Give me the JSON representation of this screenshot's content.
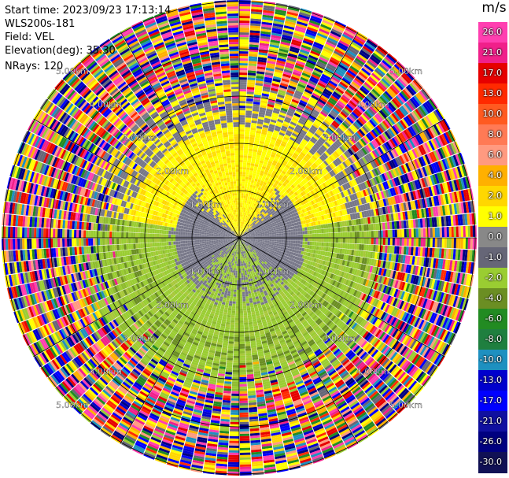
{
  "info": {
    "start_time": "Start time: 2023/09/23 17:13:14",
    "site": "WLS200s-181",
    "field": "Field: VEL",
    "elevation": "Elevation(deg): 35.30",
    "nrays": "NRays: 120"
  },
  "colorbar": {
    "unit": "m/s",
    "labels": [
      "26.0",
      "21.0",
      "17.0",
      "13.0",
      "10.0",
      "8.0",
      "6.0",
      "4.0",
      "2.0",
      "1.0",
      "0.0",
      "-1.0",
      "-2.0",
      "-4.0",
      "-6.0",
      "-8.0",
      "-10.0",
      "-13.0",
      "-17.0",
      "-21.0",
      "-26.0",
      "-30.0"
    ],
    "colors": [
      "#ff3fb0",
      "#f0208a",
      "#e60000",
      "#ff2a00",
      "#ff5a20",
      "#ff7a55",
      "#ff9a80",
      "#ffb000",
      "#ffd700",
      "#ffff00",
      "#888888",
      "#666677",
      "#9acd32",
      "#6b8e23",
      "#228b22",
      "#1f7f3f",
      "#1e90c0",
      "#0000cd",
      "#0000ff",
      "#1010a0",
      "#000080",
      "#111155"
    ]
  },
  "chart_data": {
    "type": "heatmap",
    "projection": "polar",
    "title": "",
    "field": "VEL",
    "unit": "m/s",
    "nrays": 120,
    "range_ring_labels": [
      "1.00km",
      "2.00km",
      "3.00km",
      "4.00km",
      "5.00km"
    ],
    "regions": [
      {
        "range_km": [
          0,
          1.0
        ],
        "azimuth": "north half",
        "value_ms": 1.5
      },
      {
        "range_km": [
          1.0,
          2.3
        ],
        "azimuth": "north half",
        "value_ms": 1.5
      },
      {
        "range_km": [
          0,
          1.8
        ],
        "azimuth": "south half",
        "value_ms": -1.5
      },
      {
        "range_km": [
          1.8,
          3.2
        ],
        "azimuth": "south half",
        "value_ms": -2.5
      },
      {
        "range_km": [
          0.4,
          1.4
        ],
        "azimuth": "east-west band",
        "value_ms": 0.0
      },
      {
        "range_km": [
          3.3,
          5.5
        ],
        "azimuth": "all",
        "value_ms": "noise"
      }
    ]
  }
}
